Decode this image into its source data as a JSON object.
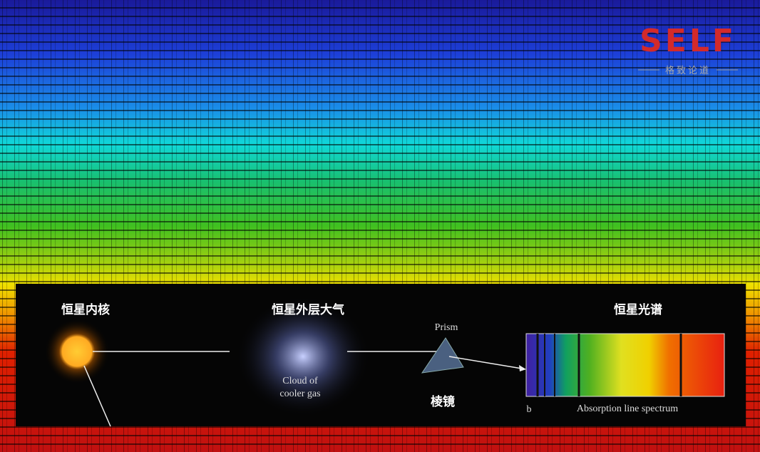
{
  "logo": {
    "title": "SELF",
    "subtitle": "格致论道"
  },
  "diagram": {
    "core_label": "恒星内核",
    "atmosphere_label": "恒星外层大气",
    "spectrum_label": "恒星光谱",
    "prism_label_en": "Prism",
    "prism_label_cn": "棱镜",
    "cloud_label": [
      "Cloud of",
      "cooler gas"
    ],
    "panel_letter": "b",
    "spectrum_caption": "Absorption line spectrum"
  }
}
